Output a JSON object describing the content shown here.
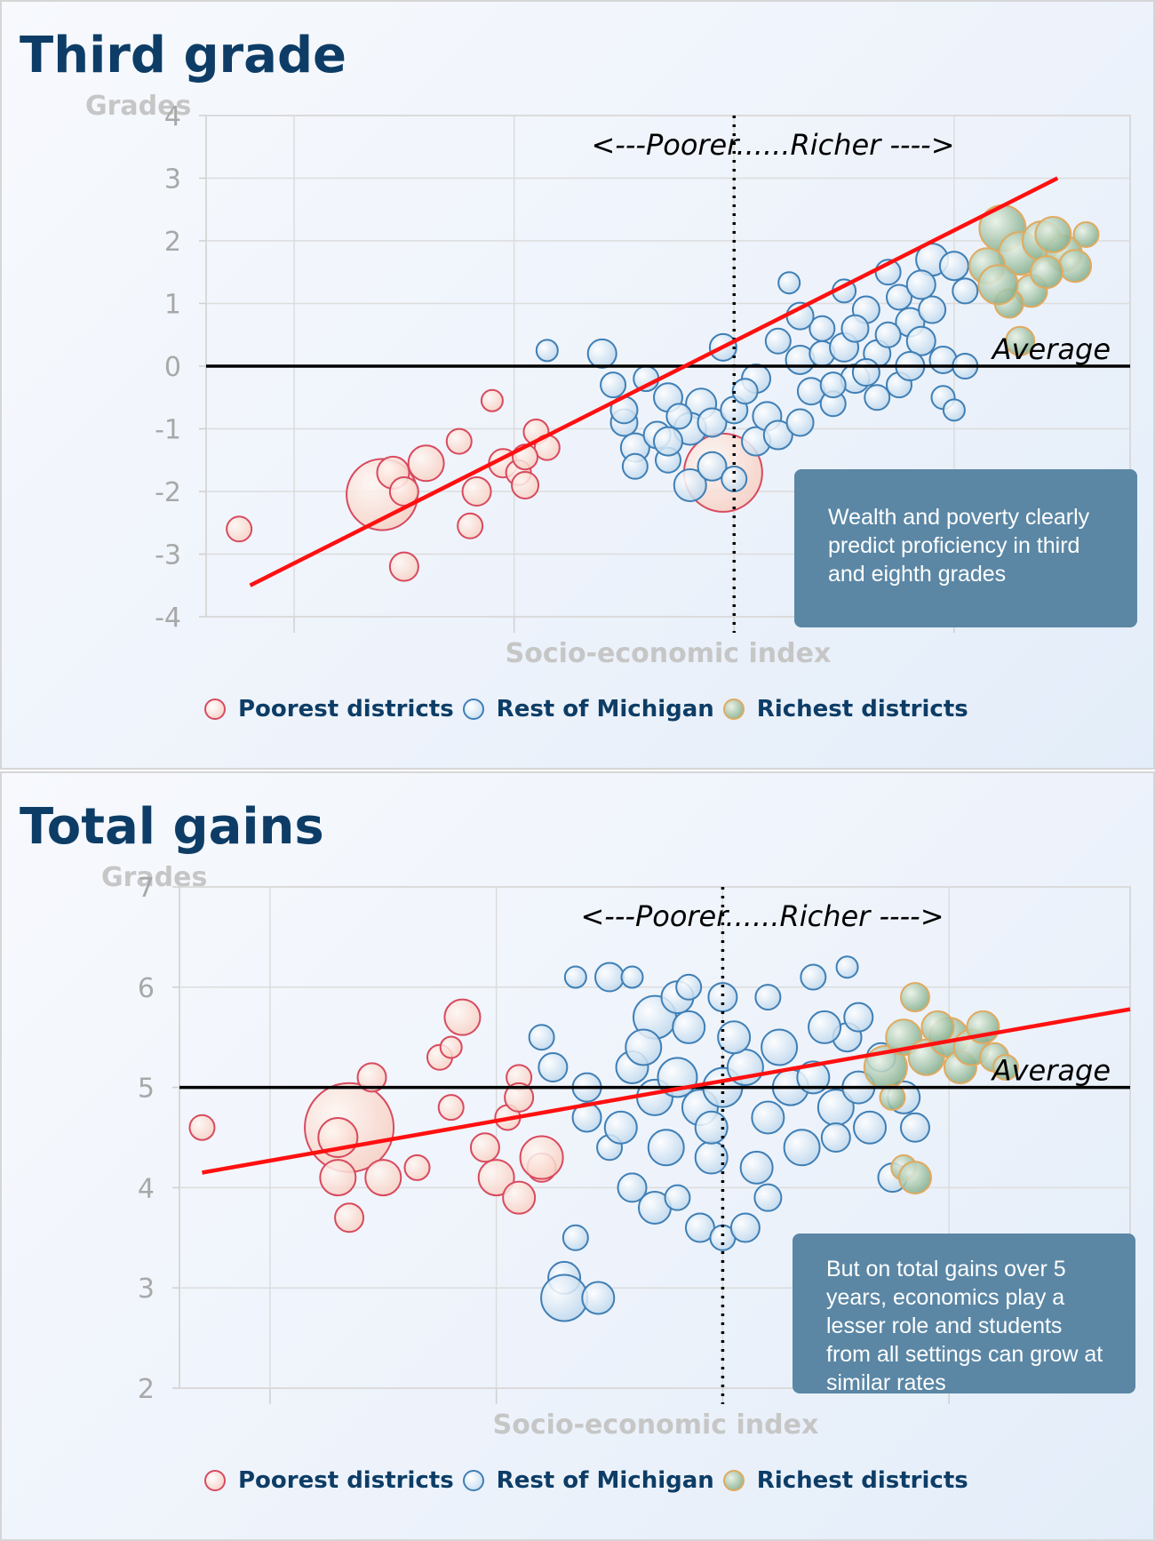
{
  "chart_data": [
    {
      "type": "scatter",
      "title": "Third grade",
      "ylabel": "Grades",
      "xlabel": "Socio-economic index",
      "ylim": [
        -4,
        4
      ],
      "xlim": [
        -2.4,
        1.8
      ],
      "yticks": [
        "4",
        "3",
        "2",
        "1",
        "0",
        "-1",
        "-2",
        "-3",
        "-4"
      ],
      "y_tick_values": [
        4,
        3,
        2,
        1,
        0,
        -1,
        -2,
        -3,
        -4
      ],
      "x_grid_values": [
        -2,
        -1,
        0,
        1
      ],
      "divider_x": 0,
      "divider_label": "<---Poorer......Richer ---->",
      "reference_line": {
        "label": "Average",
        "y": 0
      },
      "trendline": {
        "x": [
          -2.2,
          1.47
        ],
        "y": [
          -3.5,
          3.0
        ]
      },
      "annotation": "Wealth and poverty clearly predict proficiency in third and eighth grades",
      "legend": [
        "Poorest districts",
        "Rest of Michigan",
        "Richest districts"
      ],
      "series_colors": {
        "Poorest districts": "#d84a5e",
        "Rest of Michigan": "#3f7fb5",
        "Richest districts": "#e0aa60"
      },
      "grid": true,
      "series": [
        {
          "name": "Poorest districts",
          "points": [
            [
              -2.25,
              -2.6
            ],
            [
              -1.6,
              -2.05
            ],
            [
              -1.55,
              -1.7
            ],
            [
              -1.5,
              -2.0
            ],
            [
              -1.4,
              -1.55
            ],
            [
              -1.25,
              -1.2
            ],
            [
              -1.2,
              -2.55
            ],
            [
              -1.17,
              -2.0
            ],
            [
              -1.1,
              -0.55
            ],
            [
              -1.05,
              -1.55
            ],
            [
              -0.98,
              -1.7
            ],
            [
              -0.95,
              -1.9
            ],
            [
              -0.9,
              -1.05
            ],
            [
              -0.85,
              -1.3
            ],
            [
              -1.5,
              -3.2
            ],
            [
              -0.05,
              -1.7
            ],
            [
              -0.95,
              -1.45
            ]
          ],
          "sizes": [
            14,
            40,
            18,
            16,
            20,
            14,
            14,
            16,
            12,
            16,
            14,
            15,
            14,
            14,
            16,
            44,
            14
          ]
        },
        {
          "name": "Rest of Michigan",
          "points": [
            [
              -0.85,
              0.25
            ],
            [
              -0.6,
              0.2
            ],
            [
              -0.55,
              -0.3
            ],
            [
              -0.5,
              -0.9
            ],
            [
              -0.45,
              -1.3
            ],
            [
              -0.3,
              -1.5
            ],
            [
              -0.2,
              -1.9
            ],
            [
              -0.1,
              -1.6
            ],
            [
              0.0,
              -1.8
            ],
            [
              0.1,
              -1.2
            ],
            [
              -0.4,
              -0.2
            ],
            [
              -0.3,
              -0.5
            ],
            [
              -0.15,
              -0.6
            ],
            [
              -0.05,
              0.3
            ],
            [
              0.1,
              -0.2
            ],
            [
              0.2,
              0.4
            ],
            [
              0.3,
              0.1
            ],
            [
              0.4,
              0.6
            ],
            [
              0.5,
              1.2
            ],
            [
              0.6,
              0.9
            ],
            [
              0.7,
              1.5
            ],
            [
              0.8,
              0.7
            ],
            [
              0.9,
              1.7
            ],
            [
              1.0,
              1.6
            ],
            [
              0.25,
              1.33
            ],
            [
              0.35,
              -0.4
            ],
            [
              0.45,
              -0.6
            ],
            [
              0.55,
              -0.2
            ],
            [
              0.65,
              0.2
            ],
            [
              0.75,
              -0.3
            ],
            [
              0.85,
              0.4
            ],
            [
              0.95,
              0.1
            ],
            [
              1.05,
              0.0
            ],
            [
              -0.2,
              -1.0
            ],
            [
              -0.1,
              -0.9
            ],
            [
              0.0,
              -0.7
            ],
            [
              0.05,
              -0.4
            ],
            [
              0.15,
              -0.8
            ],
            [
              -0.35,
              -1.1
            ],
            [
              -0.25,
              -0.8
            ],
            [
              0.3,
              0.8
            ],
            [
              0.4,
              0.2
            ],
            [
              0.5,
              0.3
            ],
            [
              0.6,
              -0.1
            ],
            [
              0.7,
              0.5
            ],
            [
              0.8,
              0.0
            ],
            [
              0.9,
              0.9
            ],
            [
              1.05,
              1.2
            ],
            [
              0.2,
              -1.1
            ],
            [
              0.3,
              -0.9
            ],
            [
              0.45,
              -0.3
            ],
            [
              0.55,
              0.6
            ],
            [
              0.75,
              1.1
            ],
            [
              0.85,
              1.3
            ],
            [
              0.95,
              -0.5
            ],
            [
              1.0,
              -0.7
            ],
            [
              0.65,
              -0.5
            ],
            [
              -0.45,
              -1.6
            ],
            [
              -0.3,
              -1.2
            ],
            [
              -0.5,
              -0.7
            ]
          ],
          "sizes": [
            12,
            16,
            14,
            15,
            16,
            14,
            18,
            16,
            14,
            16,
            14,
            16,
            17,
            15,
            16,
            14,
            16,
            14,
            13,
            15,
            14,
            16,
            18,
            16,
            12,
            15,
            14,
            16,
            15,
            14,
            16,
            15,
            14,
            18,
            16,
            15,
            14,
            16,
            15,
            14,
            15,
            14,
            16,
            15,
            14,
            16,
            15,
            14,
            16,
            15,
            14,
            15,
            14,
            16,
            13,
            12,
            14,
            14,
            16,
            15
          ]
        },
        {
          "name": "Richest districts",
          "points": [
            [
              1.22,
              2.2
            ],
            [
              1.3,
              1.8
            ],
            [
              1.4,
              2.0
            ],
            [
              1.5,
              1.8
            ],
            [
              1.55,
              1.6
            ],
            [
              1.45,
              2.1
            ],
            [
              1.35,
              1.2
            ],
            [
              1.25,
              1.0
            ],
            [
              1.3,
              0.4
            ],
            [
              1.6,
              2.1
            ],
            [
              1.42,
              1.5
            ],
            [
              1.15,
              1.6
            ],
            [
              1.2,
              1.3
            ]
          ],
          "sizes": [
            26,
            24,
            22,
            20,
            18,
            20,
            18,
            16,
            16,
            14,
            18,
            20,
            22
          ]
        }
      ]
    },
    {
      "type": "scatter",
      "title": "Total gains",
      "ylabel": "Grades",
      "xlabel": "Socio-economic index",
      "ylim": [
        2,
        7
      ],
      "xlim": [
        -2.4,
        1.8
      ],
      "yticks": [
        "7",
        "6",
        "5",
        "4",
        "3",
        "2"
      ],
      "y_tick_values": [
        7,
        6,
        5,
        4,
        3,
        2
      ],
      "x_grid_values": [
        -2,
        -1,
        0,
        1
      ],
      "divider_x": 0,
      "divider_label": "<---Poorer......Richer ---->",
      "reference_line": {
        "label": "Average",
        "y": 5
      },
      "trendline": {
        "x": [
          -2.3,
          1.8
        ],
        "y": [
          4.15,
          5.78
        ]
      },
      "annotation": "But on total gains over 5 years, economics play a lesser role and students from all settings can grow at similar rates",
      "legend": [
        "Poorest districts",
        "Rest of Michigan",
        "Richest districts"
      ],
      "series_colors": {
        "Poorest districts": "#d84a5e",
        "Rest of Michigan": "#3f7fb5",
        "Richest districts": "#e0aa60"
      },
      "grid": true,
      "series": [
        {
          "name": "Poorest districts",
          "points": [
            [
              -2.3,
              4.6
            ],
            [
              -1.65,
              4.6
            ],
            [
              -1.7,
              4.5
            ],
            [
              -1.55,
              5.1
            ],
            [
              -1.5,
              4.1
            ],
            [
              -1.7,
              4.1
            ],
            [
              -1.65,
              3.7
            ],
            [
              -1.35,
              4.2
            ],
            [
              -1.25,
              5.3
            ],
            [
              -1.2,
              5.4
            ],
            [
              -1.15,
              5.7
            ],
            [
              -1.2,
              4.8
            ],
            [
              -1.05,
              4.4
            ],
            [
              -1.0,
              4.1
            ],
            [
              -0.95,
              4.7
            ],
            [
              -0.9,
              5.1
            ],
            [
              -0.9,
              4.9
            ],
            [
              -0.9,
              3.9
            ],
            [
              -0.8,
              4.2
            ],
            [
              -0.8,
              4.3
            ]
          ],
          "sizes": [
            14,
            50,
            22,
            16,
            20,
            20,
            16,
            14,
            14,
            12,
            20,
            14,
            16,
            20,
            14,
            14,
            16,
            18,
            16,
            24
          ]
        },
        {
          "name": "Rest of Michigan",
          "points": [
            [
              -0.8,
              5.5
            ],
            [
              -0.75,
              5.2
            ],
            [
              -0.65,
              6.1
            ],
            [
              -0.5,
              6.1
            ],
            [
              -0.4,
              6.1
            ],
            [
              -0.3,
              5.7
            ],
            [
              -0.2,
              5.9
            ],
            [
              -0.15,
              6.0
            ],
            [
              0.0,
              5.9
            ],
            [
              0.2,
              5.9
            ],
            [
              0.4,
              6.1
            ],
            [
              0.55,
              6.2
            ],
            [
              -0.6,
              4.7
            ],
            [
              -0.5,
              4.4
            ],
            [
              -0.4,
              4.0
            ],
            [
              -0.3,
              3.8
            ],
            [
              -0.2,
              3.9
            ],
            [
              -0.1,
              3.6
            ],
            [
              0.0,
              3.5
            ],
            [
              0.1,
              3.6
            ],
            [
              0.2,
              3.9
            ],
            [
              -0.65,
              3.5
            ],
            [
              -0.7,
              3.1
            ],
            [
              -0.7,
              2.9
            ],
            [
              -0.55,
              2.9
            ],
            [
              -0.4,
              5.2
            ],
            [
              -0.3,
              4.9
            ],
            [
              -0.2,
              5.1
            ],
            [
              -0.1,
              4.8
            ],
            [
              0.0,
              5.0
            ],
            [
              0.1,
              5.2
            ],
            [
              0.2,
              4.7
            ],
            [
              0.3,
              5.0
            ],
            [
              0.4,
              5.1
            ],
            [
              0.5,
              4.8
            ],
            [
              0.6,
              5.0
            ],
            [
              0.7,
              5.3
            ],
            [
              0.8,
              4.9
            ],
            [
              0.55,
              5.5
            ],
            [
              -0.45,
              4.6
            ],
            [
              -0.25,
              4.4
            ],
            [
              -0.05,
              4.3
            ],
            [
              0.15,
              4.2
            ],
            [
              0.35,
              4.4
            ],
            [
              0.5,
              4.5
            ],
            [
              0.65,
              4.6
            ],
            [
              0.75,
              4.1
            ],
            [
              -0.6,
              5.0
            ],
            [
              -0.15,
              5.6
            ],
            [
              0.25,
              5.4
            ],
            [
              0.45,
              5.6
            ],
            [
              0.05,
              5.5
            ],
            [
              -0.35,
              5.4
            ],
            [
              0.6,
              5.7
            ],
            [
              0.85,
              4.6
            ],
            [
              -0.05,
              4.6
            ]
          ],
          "sizes": [
            14,
            16,
            12,
            16,
            12,
            24,
            18,
            14,
            16,
            14,
            14,
            12,
            16,
            14,
            16,
            18,
            14,
            16,
            14,
            16,
            15,
            14,
            18,
            26,
            18,
            18,
            20,
            22,
            20,
            22,
            20,
            18,
            20,
            18,
            20,
            18,
            16,
            18,
            16,
            18,
            20,
            18,
            18,
            20,
            16,
            18,
            16,
            16,
            18,
            20,
            18,
            18,
            20,
            16,
            16,
            18
          ]
        },
        {
          "name": "Richest districts",
          "points": [
            [
              0.72,
              5.2
            ],
            [
              0.8,
              5.5
            ],
            [
              0.85,
              5.9
            ],
            [
              0.9,
              5.3
            ],
            [
              1.0,
              5.5
            ],
            [
              1.05,
              5.2
            ],
            [
              1.1,
              5.4
            ],
            [
              1.15,
              5.6
            ],
            [
              1.2,
              5.3
            ],
            [
              1.25,
              5.2
            ],
            [
              0.75,
              4.9
            ],
            [
              0.8,
              4.2
            ],
            [
              0.85,
              4.1
            ],
            [
              0.95,
              5.6
            ]
          ],
          "sizes": [
            24,
            20,
            16,
            20,
            22,
            18,
            20,
            18,
            16,
            14,
            14,
            14,
            18,
            18
          ]
        }
      ]
    }
  ]
}
